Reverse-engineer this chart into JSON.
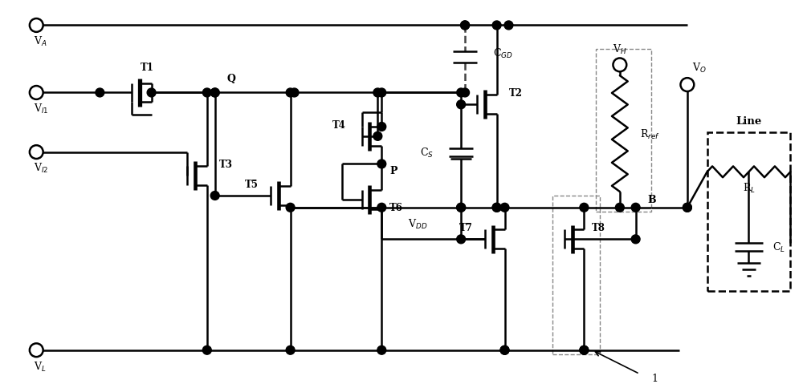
{
  "bg_color": "#ffffff",
  "lc": "#000000",
  "lw": 1.8,
  "fig_width": 10.0,
  "fig_height": 4.85,
  "dpi": 100,
  "xlim": [
    0,
    100
  ],
  "ylim": [
    0,
    48.5
  ],
  "dot_r": 0.55,
  "open_r": 0.85,
  "labels": {
    "VA": "V$_A$",
    "VI1": "V$_{I1}$",
    "VI2": "V$_{I2}$",
    "VL": "V$_L$",
    "VH": "V$_H$",
    "VO": "V$_O$",
    "VDD": "V$_{DD}$",
    "CGD": "C$_{GD}$",
    "CS": "C$_S$",
    "Rref": "R$_{ref}$",
    "RL": "R$_L$",
    "CL": "C$_L$",
    "T1": "T1",
    "T2": "T2",
    "T3": "T3",
    "T4": "T4",
    "T5": "T5",
    "T6": "T6",
    "T7": "T7",
    "T8": "T8",
    "Q": "Q",
    "P": "P",
    "B": "B",
    "one": "1",
    "Line": "Line"
  }
}
